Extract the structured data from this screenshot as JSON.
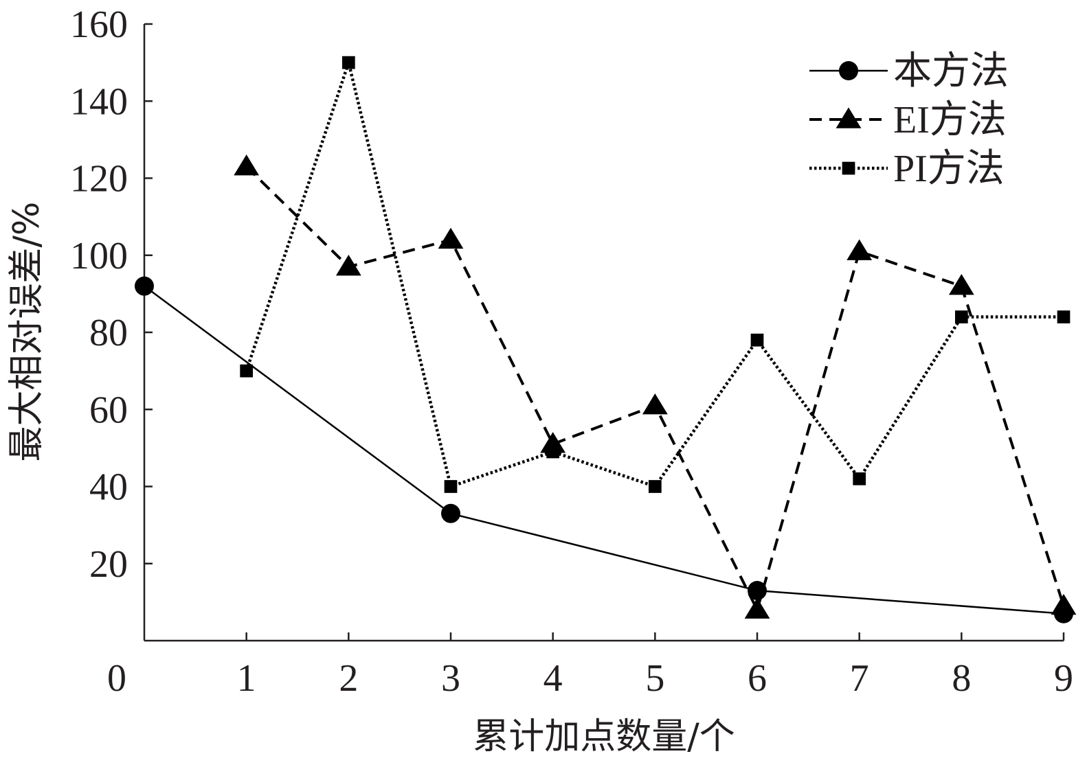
{
  "chart_data": {
    "type": "line",
    "xlabel": "累计加点数量/个",
    "ylabel": "最大相对误差/%",
    "xlim": [
      0,
      9
    ],
    "ylim": [
      0,
      160
    ],
    "x_ticks": [
      "0",
      "1",
      "2",
      "3",
      "4",
      "5",
      "6",
      "7",
      "8",
      "9"
    ],
    "y_ticks": [
      "20",
      "40",
      "60",
      "80",
      "100",
      "120",
      "140",
      "160"
    ],
    "grid": false,
    "legend_position": "top-right",
    "series": [
      {
        "name": "本方法",
        "marker": "circle",
        "line_style": "solid",
        "color": "#000000",
        "points": [
          [
            0,
            92
          ],
          [
            3,
            33
          ],
          [
            6,
            13
          ],
          [
            9,
            7
          ]
        ]
      },
      {
        "name": "EI方法",
        "marker": "triangle",
        "line_style": "dashed",
        "color": "#000000",
        "points": [
          [
            1,
            123
          ],
          [
            2,
            97
          ],
          [
            3,
            104
          ],
          [
            4,
            51
          ],
          [
            5,
            61
          ],
          [
            6,
            8
          ],
          [
            7,
            101
          ],
          [
            8,
            92
          ],
          [
            9,
            9
          ]
        ]
      },
      {
        "name": "PI方法",
        "marker": "square",
        "line_style": "dotted",
        "color": "#000000",
        "points": [
          [
            1,
            70
          ],
          [
            2,
            150
          ],
          [
            3,
            40
          ],
          [
            4,
            49
          ],
          [
            5,
            40
          ],
          [
            6,
            78
          ],
          [
            7,
            42
          ],
          [
            8,
            84
          ],
          [
            9,
            84
          ]
        ]
      }
    ]
  }
}
